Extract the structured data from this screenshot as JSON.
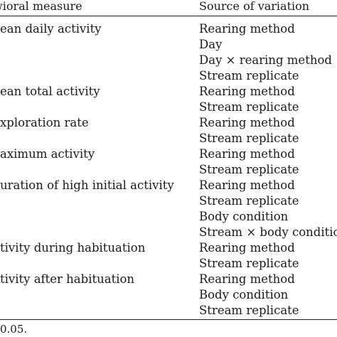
{
  "table": {
    "header": {
      "measure": "wioral measure",
      "source": "Source of variation"
    },
    "groups": [
      {
        "measure": "ean daily activity",
        "sources": [
          "Rearing method",
          "Day",
          "Day × rearing method",
          "Stream replicate"
        ]
      },
      {
        "measure": "ean total activity",
        "sources": [
          "Rearing method",
          "Stream replicate"
        ]
      },
      {
        "measure": "xploration rate",
        "sources": [
          "Rearing method",
          "Stream replicate"
        ]
      },
      {
        "measure": "aximum activity",
        "sources": [
          "Rearing method",
          "Stream replicate"
        ]
      },
      {
        "measure": "uration of high initial activity",
        "sources": [
          "Rearing method",
          "Stream replicate",
          "Body condition",
          "Stream × body conditio"
        ]
      },
      {
        "measure": "tivity during habituation",
        "sources": [
          "Rearing method",
          "Stream replicate"
        ]
      },
      {
        "measure": "tivity after habituation",
        "sources": [
          "Rearing method",
          "Body condition",
          "Stream replicate"
        ]
      }
    ],
    "footnote": "0.05."
  }
}
